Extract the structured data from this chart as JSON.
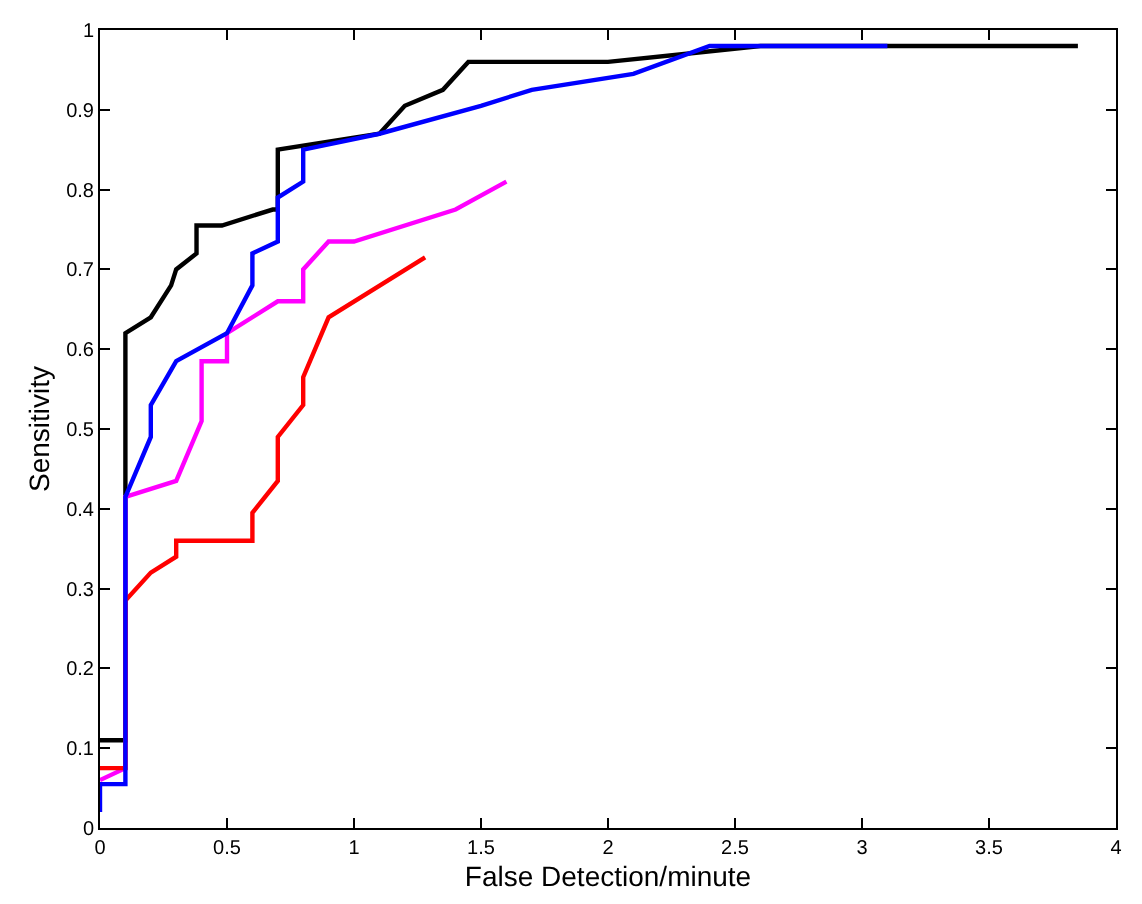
{
  "chart_data": {
    "type": "line",
    "xlabel": "False Detection/minute",
    "ylabel": "Sensitivity",
    "xlim": [
      0,
      4
    ],
    "ylim": [
      0,
      1
    ],
    "xticks": [
      0,
      0.5,
      1,
      1.5,
      2,
      2.5,
      3,
      3.5,
      4
    ],
    "yticks": [
      0,
      0.1,
      0.2,
      0.3,
      0.4,
      0.5,
      0.6,
      0.7,
      0.8,
      0.9,
      1
    ],
    "marker": "none",
    "line_style": "solid",
    "series": [
      {
        "color": "#000000",
        "x": [
          0,
          0.1,
          0.1,
          0.2,
          0.28,
          0.3,
          0.38,
          0.38,
          0.48,
          0.68,
          0.7,
          0.7,
          1.1,
          1.2,
          1.35,
          1.45,
          2.0,
          2.3,
          2.6,
          3.85
        ],
        "values": [
          0.11,
          0.11,
          0.62,
          0.64,
          0.68,
          0.7,
          0.72,
          0.755,
          0.755,
          0.775,
          0.775,
          0.85,
          0.87,
          0.905,
          0.925,
          0.96,
          0.96,
          0.97,
          0.98,
          0.98
        ]
      },
      {
        "color": "#ff00ff",
        "x": [
          0,
          0.1,
          0.1,
          0.3,
          0.4,
          0.4,
          0.5,
          0.5,
          0.7,
          0.8,
          0.8,
          0.9,
          1.0,
          1.4,
          1.6
        ],
        "values": [
          0.06,
          0.075,
          0.415,
          0.435,
          0.51,
          0.585,
          0.585,
          0.62,
          0.66,
          0.66,
          0.7,
          0.735,
          0.735,
          0.775,
          0.81
        ]
      },
      {
        "color": "#ff0000",
        "x": [
          0,
          0.1,
          0.1,
          0.2,
          0.3,
          0.3,
          0.6,
          0.6,
          0.7,
          0.7,
          0.8,
          0.8,
          0.9,
          1.28
        ],
        "values": [
          0.075,
          0.075,
          0.285,
          0.32,
          0.34,
          0.36,
          0.36,
          0.395,
          0.435,
          0.49,
          0.53,
          0.565,
          0.64,
          0.715
        ]
      },
      {
        "color": "#0000ff",
        "x": [
          0,
          0,
          0.1,
          0.1,
          0.2,
          0.2,
          0.3,
          0.5,
          0.6,
          0.6,
          0.7,
          0.7,
          0.8,
          0.8,
          1.1,
          1.5,
          1.7,
          2.1,
          2.4,
          3.1
        ],
        "values": [
          0.02,
          0.055,
          0.055,
          0.415,
          0.49,
          0.53,
          0.585,
          0.62,
          0.68,
          0.72,
          0.735,
          0.79,
          0.81,
          0.85,
          0.87,
          0.905,
          0.925,
          0.945,
          0.98,
          0.98
        ]
      }
    ]
  }
}
